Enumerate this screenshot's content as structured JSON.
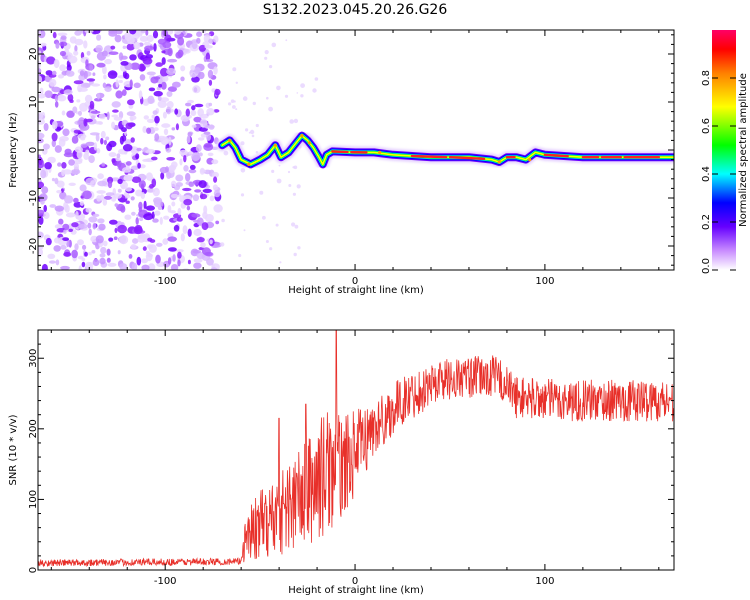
{
  "title": "S132.2023.045.20.26.G26",
  "chart_data": [
    {
      "type": "heatmap",
      "xlabel": "Height of straight line (km)",
      "ylabel": "Frequency (Hz)",
      "xlim": [
        -167,
        168
      ],
      "ylim": [
        -25,
        25
      ],
      "x_ticks": [
        -100,
        0,
        100
      ],
      "y_ticks": [
        -20,
        -10,
        0,
        10,
        20
      ],
      "noise_region_x": [
        -167,
        -72
      ],
      "doppler_trace": [
        {
          "x": -70,
          "y": 1.0
        },
        {
          "x": -66,
          "y": 2.0
        },
        {
          "x": -63,
          "y": 0.5
        },
        {
          "x": -60,
          "y": -2.0
        },
        {
          "x": -55,
          "y": -3.0
        },
        {
          "x": -50,
          "y": -2.0
        },
        {
          "x": -46,
          "y": -1.0
        },
        {
          "x": -42,
          "y": 1.0
        },
        {
          "x": -39,
          "y": -1.5
        },
        {
          "x": -35,
          "y": -0.5
        },
        {
          "x": -31,
          "y": 1.5
        },
        {
          "x": -28,
          "y": 3.0
        },
        {
          "x": -25,
          "y": 2.0
        },
        {
          "x": -22,
          "y": 0.5
        },
        {
          "x": -19,
          "y": -1.5
        },
        {
          "x": -17,
          "y": -3.0
        },
        {
          "x": -15,
          "y": -1.0
        },
        {
          "x": -12,
          "y": -0.3
        },
        {
          "x": 0,
          "y": -0.5
        },
        {
          "x": 10,
          "y": -0.5
        },
        {
          "x": 20,
          "y": -1.0
        },
        {
          "x": 40,
          "y": -1.5
        },
        {
          "x": 60,
          "y": -1.5
        },
        {
          "x": 72,
          "y": -2.0
        },
        {
          "x": 76,
          "y": -2.5
        },
        {
          "x": 80,
          "y": -1.5
        },
        {
          "x": 85,
          "y": -1.5
        },
        {
          "x": 90,
          "y": -2.0
        },
        {
          "x": 95,
          "y": -0.5
        },
        {
          "x": 100,
          "y": -1.0
        },
        {
          "x": 120,
          "y": -1.5
        },
        {
          "x": 140,
          "y": -1.5
        },
        {
          "x": 168,
          "y": -1.5
        }
      ],
      "colorbar": {
        "label": "Normalized spectral amplitude",
        "range": [
          0,
          1
        ],
        "ticks": [
          "0.0",
          "0.2",
          "0.4",
          "0.6",
          "0.8"
        ],
        "colors": [
          "#ffffff",
          "#8a00ff",
          "#0000ff",
          "#00ffff",
          "#00ff00",
          "#ffff00",
          "#ff8000",
          "#ff0000",
          "#ff0066"
        ]
      }
    },
    {
      "type": "line",
      "xlabel": "Height of straight line (km)",
      "ylabel": "SNR (10 * v/v)",
      "xlim": [
        -167,
        168
      ],
      "ylim": [
        0,
        340
      ],
      "x_ticks": [
        -100,
        0,
        100
      ],
      "y_ticks": [
        0,
        100,
        200,
        300
      ],
      "color": "#e8302a",
      "envelope": [
        {
          "x": -167,
          "base": 10,
          "amp": 5
        },
        {
          "x": -60,
          "base": 12,
          "amp": 5
        },
        {
          "x": -58,
          "base": 50,
          "amp": 40
        },
        {
          "x": -40,
          "base": 80,
          "amp": 60
        },
        {
          "x": -25,
          "base": 110,
          "amp": 80
        },
        {
          "x": -15,
          "base": 140,
          "amp": 90
        },
        {
          "x": -5,
          "base": 150,
          "amp": 70
        },
        {
          "x": 10,
          "base": 200,
          "amp": 40
        },
        {
          "x": 25,
          "base": 240,
          "amp": 35
        },
        {
          "x": 45,
          "base": 270,
          "amp": 30
        },
        {
          "x": 75,
          "base": 275,
          "amp": 30
        },
        {
          "x": 85,
          "base": 245,
          "amp": 30
        },
        {
          "x": 110,
          "base": 240,
          "amp": 30
        },
        {
          "x": 168,
          "base": 240,
          "amp": 30
        }
      ],
      "spikes": [
        {
          "x": -10,
          "y": 340
        },
        {
          "x": -26,
          "y": 235
        },
        {
          "x": -40,
          "y": 215
        }
      ]
    }
  ]
}
